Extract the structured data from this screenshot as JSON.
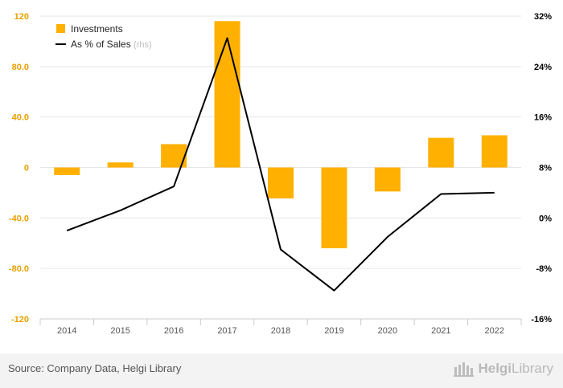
{
  "chart_data": {
    "type": "bar+line",
    "categories": [
      "2014",
      "2015",
      "2016",
      "2017",
      "2018",
      "2019",
      "2020",
      "2021",
      "2022"
    ],
    "series": [
      {
        "name": "Investments",
        "type": "bar",
        "axis": "left",
        "color": "#ffb000",
        "values": [
          -6,
          4,
          18.5,
          116,
          -24.5,
          -64,
          -19,
          23.5,
          25.5
        ]
      },
      {
        "name": "As % of Sales",
        "name_suffix": "(rhs)",
        "type": "line",
        "axis": "right",
        "color": "#000000",
        "values": [
          -2.0,
          1.2,
          5.0,
          28.5,
          -5.0,
          -11.5,
          -3.0,
          3.8,
          4.0
        ]
      }
    ],
    "y_left": {
      "ylim": [
        -120,
        120
      ],
      "ticks": [
        120,
        80,
        40,
        0,
        -40,
        -80,
        -120
      ],
      "tick_labels": [
        "120",
        "80.0",
        "40.0",
        "0",
        "-40.0",
        "-80.0",
        "-120"
      ],
      "color": "#e8a000"
    },
    "y_right": {
      "ylim": [
        -16,
        32
      ],
      "ticks": [
        32,
        24,
        16,
        8,
        0,
        -8,
        -16
      ],
      "tick_labels": [
        "32%",
        "24%",
        "16%",
        "8%",
        "0%",
        "-8%",
        "-16%"
      ],
      "color": "#000000"
    },
    "grid": true,
    "legend": "top-left"
  },
  "footer": {
    "source": "Source: Company Data, Helgi Library",
    "logo_part1": "Helgi",
    "logo_part2": "Library"
  },
  "colors": {
    "bar": "#ffb000",
    "line": "#000000",
    "grid": "#e6e6e6",
    "footer_bg": "#f3f3f3"
  }
}
